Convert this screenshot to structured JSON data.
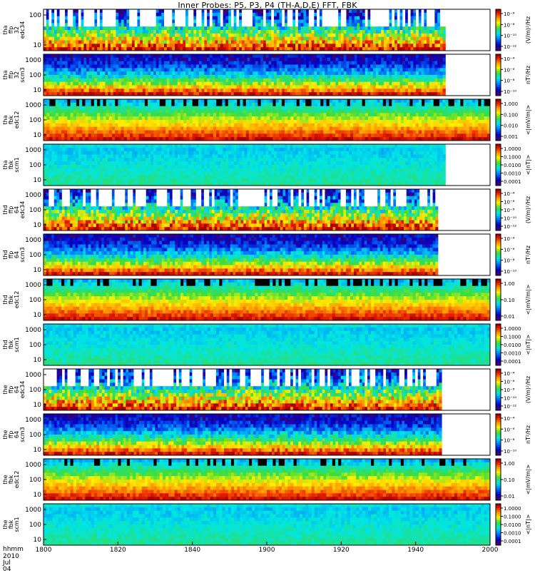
{
  "title": "Inner Probes: P5, P3, P4 (TH-A,D,E) FFT, FBK",
  "x_header": {
    "line1": "hhmm",
    "line2": "2010 Jul 04"
  },
  "chart_data": {
    "type": "heatmap",
    "title": "Inner Probes: P5, P3, P4 (TH-A,D,E) FFT, FBK",
    "x_ticks": [
      "1800",
      "1820",
      "1840",
      "1900",
      "1920",
      "1940",
      "2000"
    ],
    "xlim": [
      "1800",
      "2000"
    ],
    "colormap": "rainbow (purple-blue-cyan-green-yellow-orange-red)",
    "panels": [
      {
        "ylabel": [
          "tha",
          "ffp",
          "32",
          "edc34"
        ],
        "yticks": [
          "10",
          "100"
        ],
        "cbar_label": "(V/m)²/Hz",
        "cbar_ticks": [
          "10⁻⁶",
          "10⁻⁸",
          "10⁻¹⁰",
          "10⁻¹²"
        ],
        "scale": "log",
        "data_end_hhmm": "1948",
        "kind": "ffp-e"
      },
      {
        "ylabel": [
          "tha",
          "ffp",
          "32",
          "scm3"
        ],
        "yticks": [
          "10",
          "100",
          "1000"
        ],
        "cbar_label": "nT²/Hz",
        "cbar_ticks": [
          "10⁻⁴",
          "10⁻⁶",
          "10⁻⁸",
          "10⁻¹⁰"
        ],
        "scale": "log",
        "data_end_hhmm": "1948",
        "kind": "ffp-b"
      },
      {
        "ylabel": [
          "tha",
          "fbk",
          "edc12"
        ],
        "yticks": [
          "10",
          "100",
          "1000"
        ],
        "cbar_label": "<|mV/m|>",
        "cbar_ticks": [
          "1.000",
          "0.100",
          "0.010",
          "0.001"
        ],
        "scale": "log",
        "data_end_hhmm": "2000",
        "kind": "fbk-e"
      },
      {
        "ylabel": [
          "tha",
          "fbk",
          "scm1"
        ],
        "yticks": [
          "10",
          "100",
          "1000"
        ],
        "cbar_label": "<|nT|>",
        "cbar_ticks": [
          "1.0000",
          "0.1000",
          "0.0100",
          "0.0010",
          "0.0001"
        ],
        "scale": "log",
        "data_end_hhmm": "1948",
        "kind": "fbk-b"
      },
      {
        "ylabel": [
          "thd",
          "ffp",
          "64",
          "edc34"
        ],
        "yticks": [
          "10",
          "100",
          "1000"
        ],
        "cbar_label": "(V/m)²/Hz",
        "cbar_ticks": [
          "10⁻⁴",
          "10⁻⁶",
          "10⁻⁸",
          "10⁻¹⁰",
          "10⁻¹²"
        ],
        "scale": "log",
        "data_end_hhmm": "1946",
        "kind": "ffp-e"
      },
      {
        "ylabel": [
          "thd",
          "ffp",
          "64",
          "scm3"
        ],
        "yticks": [
          "10",
          "100",
          "1000"
        ],
        "cbar_label": "nT²/Hz",
        "cbar_ticks": [
          "10⁻⁴",
          "10⁻⁶",
          "10⁻⁸",
          "10⁻¹⁰"
        ],
        "scale": "log",
        "data_end_hhmm": "1946",
        "kind": "ffp-b"
      },
      {
        "ylabel": [
          "thd",
          "fbk",
          "edc12"
        ],
        "yticks": [
          "10",
          "100",
          "1000"
        ],
        "cbar_label": "<|mV/m|>",
        "cbar_ticks": [
          "1.00",
          "0.10",
          "0.01"
        ],
        "scale": "log",
        "data_end_hhmm": "2000",
        "kind": "fbk-e"
      },
      {
        "ylabel": [
          "thd",
          "fbk",
          "scm1"
        ],
        "yticks": [
          "10",
          "100",
          "1000"
        ],
        "cbar_label": "<|nT|>",
        "cbar_ticks": [
          "1.0000",
          "0.1000",
          "0.0100",
          "0.0010",
          "0.0001"
        ],
        "scale": "log",
        "data_end_hhmm": "2000",
        "kind": "fbk-b"
      },
      {
        "ylabel": [
          "the",
          "ffp",
          "64",
          "edc34"
        ],
        "yticks": [
          "10",
          "100",
          "1000"
        ],
        "cbar_label": "(V/m)²/Hz",
        "cbar_ticks": [
          "10⁻⁴",
          "10⁻⁶",
          "10⁻⁸",
          "10⁻¹⁰",
          "10⁻¹²"
        ],
        "scale": "log",
        "data_end_hhmm": "1947",
        "kind": "ffp-e"
      },
      {
        "ylabel": [
          "the",
          "ffp",
          "64",
          "scm3"
        ],
        "yticks": [
          "10",
          "100",
          "1000"
        ],
        "cbar_label": "nT²/Hz",
        "cbar_ticks": [
          "10⁻⁴",
          "10⁻⁶",
          "10⁻⁸",
          "10⁻¹⁰"
        ],
        "scale": "log",
        "data_end_hhmm": "1947",
        "kind": "ffp-b"
      },
      {
        "ylabel": [
          "the",
          "fbk",
          "edc12"
        ],
        "yticks": [
          "10",
          "100",
          "1000"
        ],
        "cbar_label": "<|mV/m|>",
        "cbar_ticks": [
          "1.00",
          "0.10",
          "0.01"
        ],
        "scale": "log",
        "data_end_hhmm": "2000",
        "kind": "fbk-e"
      },
      {
        "ylabel": [
          "the",
          "fbk",
          "scm1"
        ],
        "yticks": [
          "10",
          "100",
          "1000"
        ],
        "cbar_label": "<|nT|>",
        "cbar_ticks": [
          "1.0000",
          "0.1000",
          "0.0100",
          "0.0010",
          "0.0001"
        ],
        "scale": "log",
        "data_end_hhmm": "2000",
        "kind": "fbk-b"
      }
    ]
  }
}
